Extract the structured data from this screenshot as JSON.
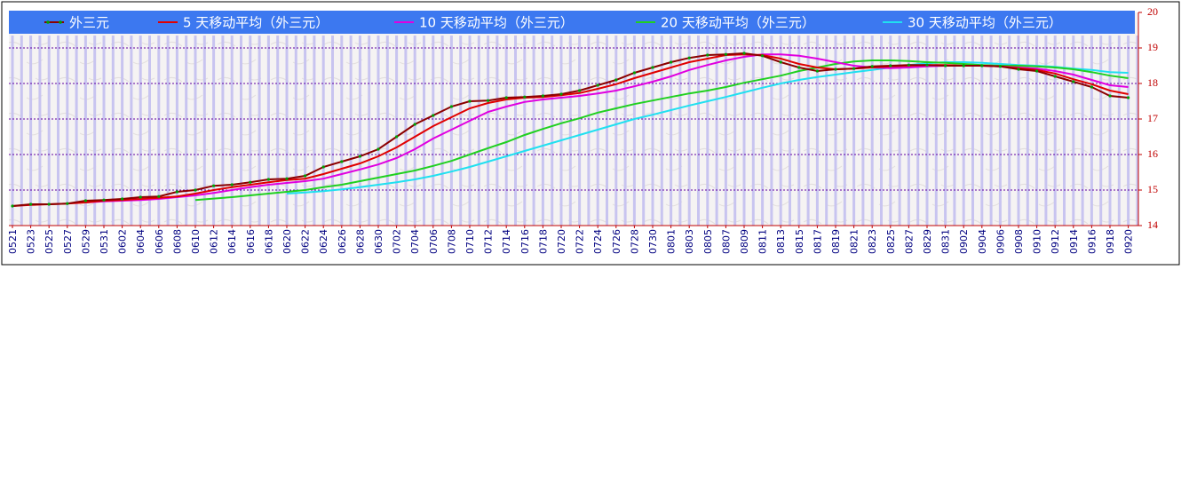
{
  "chart_data": {
    "type": "line",
    "categories": [
      "0521",
      "0523",
      "0525",
      "0527",
      "0529",
      "0531",
      "0602",
      "0604",
      "0606",
      "0608",
      "0610",
      "0612",
      "0614",
      "0616",
      "0618",
      "0620",
      "0622",
      "0624",
      "0626",
      "0628",
      "0630",
      "0702",
      "0704",
      "0706",
      "0708",
      "0710",
      "0712",
      "0714",
      "0716",
      "0718",
      "0720",
      "0722",
      "0724",
      "0726",
      "0728",
      "0730",
      "0801",
      "0803",
      "0805",
      "0807",
      "0809",
      "0811",
      "0813",
      "0815",
      "0817",
      "0819",
      "0821",
      "0823",
      "0825",
      "0827",
      "0829",
      "0831",
      "0902",
      "0904",
      "0906",
      "0908",
      "0910",
      "0912",
      "0914",
      "0916",
      "0918",
      "0920"
    ],
    "series": [
      {
        "name": "外三元",
        "color": "#8b0000",
        "marker_color": "#00a000",
        "values": [
          14.55,
          14.6,
          14.6,
          14.62,
          14.7,
          14.72,
          14.75,
          14.8,
          14.82,
          14.95,
          15.0,
          15.12,
          15.15,
          15.22,
          15.3,
          15.32,
          15.4,
          15.65,
          15.8,
          15.95,
          16.15,
          16.5,
          16.85,
          17.1,
          17.35,
          17.5,
          17.52,
          17.6,
          17.62,
          17.65,
          17.7,
          17.8,
          17.95,
          18.1,
          18.3,
          18.45,
          18.6,
          18.72,
          18.8,
          18.82,
          18.85,
          18.78,
          18.6,
          18.45,
          18.35,
          18.4,
          18.42,
          18.48,
          18.5,
          18.52,
          18.52,
          18.5,
          18.5,
          18.5,
          18.48,
          18.4,
          18.35,
          18.2,
          18.05,
          17.9,
          17.65,
          17.6
        ]
      },
      {
        "name": "5 天移动平均（外三元）",
        "color": "#e00000",
        "values": [
          14.55,
          14.58,
          14.6,
          14.62,
          14.65,
          14.7,
          14.72,
          14.75,
          14.78,
          14.82,
          14.9,
          15.0,
          15.08,
          15.15,
          15.22,
          15.28,
          15.32,
          15.45,
          15.6,
          15.75,
          15.95,
          16.2,
          16.5,
          16.8,
          17.05,
          17.3,
          17.45,
          17.55,
          17.6,
          17.62,
          17.67,
          17.73,
          17.85,
          17.98,
          18.15,
          18.3,
          18.45,
          18.6,
          18.7,
          18.8,
          18.82,
          18.8,
          18.7,
          18.55,
          18.45,
          18.4,
          18.42,
          18.45,
          18.48,
          18.5,
          18.52,
          18.52,
          18.5,
          18.5,
          18.48,
          18.43,
          18.38,
          18.28,
          18.12,
          17.98,
          17.8,
          17.7
        ]
      },
      {
        "name": "10 天移动平均（外三元）",
        "color": "#e000e0",
        "values": [
          null,
          null,
          null,
          null,
          14.65,
          14.68,
          14.7,
          14.72,
          14.75,
          14.8,
          14.85,
          14.92,
          15.0,
          15.08,
          15.15,
          15.2,
          15.25,
          15.32,
          15.45,
          15.58,
          15.72,
          15.9,
          16.15,
          16.45,
          16.7,
          16.95,
          17.2,
          17.35,
          17.48,
          17.55,
          17.6,
          17.65,
          17.72,
          17.8,
          17.92,
          18.05,
          18.2,
          18.38,
          18.52,
          18.65,
          18.75,
          18.82,
          18.82,
          18.78,
          18.7,
          18.6,
          18.5,
          18.45,
          18.43,
          18.45,
          18.48,
          18.5,
          18.5,
          18.5,
          18.48,
          18.45,
          18.42,
          18.35,
          18.25,
          18.1,
          17.95,
          17.9
        ]
      },
      {
        "name": "20 天移动平均（外三元）",
        "color": "#20d020",
        "values": [
          null,
          null,
          null,
          null,
          null,
          null,
          null,
          null,
          null,
          null,
          14.72,
          14.76,
          14.8,
          14.85,
          14.9,
          14.95,
          15.0,
          15.08,
          15.15,
          15.25,
          15.35,
          15.45,
          15.55,
          15.68,
          15.82,
          16.0,
          16.18,
          16.35,
          16.55,
          16.72,
          16.88,
          17.02,
          17.18,
          17.3,
          17.42,
          17.52,
          17.62,
          17.72,
          17.8,
          17.9,
          18.02,
          18.12,
          18.22,
          18.35,
          18.45,
          18.55,
          18.62,
          18.65,
          18.65,
          18.63,
          18.6,
          18.58,
          18.55,
          18.52,
          18.5,
          18.5,
          18.48,
          18.45,
          18.4,
          18.32,
          18.22,
          18.15
        ]
      },
      {
        "name": "30 天移动平均（外三元）",
        "color": "#20e0f0",
        "values": [
          null,
          null,
          null,
          null,
          null,
          null,
          null,
          null,
          null,
          null,
          null,
          null,
          null,
          null,
          null,
          14.9,
          14.93,
          14.97,
          15.02,
          15.08,
          15.15,
          15.22,
          15.3,
          15.4,
          15.52,
          15.65,
          15.8,
          15.95,
          16.1,
          16.25,
          16.4,
          16.55,
          16.7,
          16.85,
          17.0,
          17.12,
          17.25,
          17.38,
          17.5,
          17.62,
          17.75,
          17.88,
          18.0,
          18.1,
          18.18,
          18.25,
          18.32,
          18.38,
          18.45,
          18.52,
          18.57,
          18.6,
          18.6,
          18.58,
          18.55,
          18.52,
          18.5,
          18.47,
          18.42,
          18.38,
          18.32,
          18.3
        ]
      }
    ],
    "ylim": [
      14,
      20
    ],
    "yticks": [
      14,
      15,
      16,
      17,
      18,
      19,
      20
    ],
    "grid": true,
    "legend": "top"
  }
}
